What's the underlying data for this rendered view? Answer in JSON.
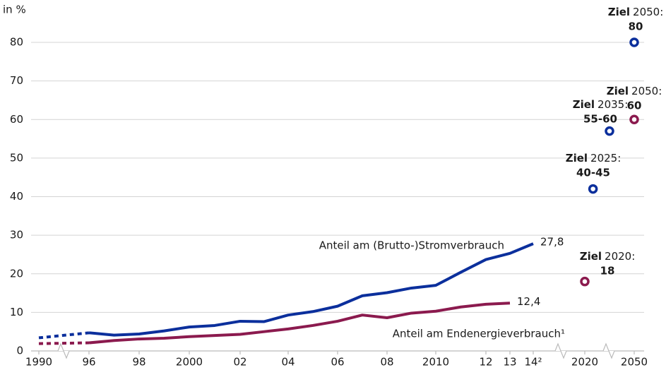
{
  "chart_data": {
    "type": "line",
    "y_label": "in %",
    "ylim": [
      0,
      80
    ],
    "yticks": [
      0,
      10,
      20,
      30,
      40,
      50,
      60,
      70,
      80
    ],
    "grid": true,
    "xticks": [
      {
        "value": 1990,
        "label": "1990"
      },
      {
        "value": 1996,
        "label": "96"
      },
      {
        "value": 1998,
        "label": "98"
      },
      {
        "value": 2000,
        "label": "2000"
      },
      {
        "value": 2002,
        "label": "02"
      },
      {
        "value": 2004,
        "label": "04"
      },
      {
        "value": 2006,
        "label": "06"
      },
      {
        "value": 2008,
        "label": "08"
      },
      {
        "value": 2010,
        "label": "2010"
      },
      {
        "value": 2012,
        "label": "12"
      },
      {
        "value": 2013,
        "label": "13"
      },
      {
        "value": 2014,
        "label": "14²"
      },
      {
        "value": 2020,
        "label": "2020"
      },
      {
        "value": 2050,
        "label": "2050"
      }
    ],
    "x": [
      1990,
      1996,
      1997,
      1998,
      1999,
      2000,
      2001,
      2002,
      2003,
      2004,
      2005,
      2006,
      2007,
      2008,
      2009,
      2010,
      2011,
      2012,
      2013,
      2014
    ],
    "series": [
      {
        "name": "Anteil am (Brutto-)Stromverbrauch",
        "color": "#0b2f9c",
        "end_label": "27,8",
        "values": [
          3.4,
          4.7,
          4.1,
          4.4,
          5.2,
          6.2,
          6.6,
          7.7,
          7.6,
          9.3,
          10.2,
          11.6,
          14.3,
          15.1,
          16.3,
          17.0,
          20.4,
          23.7,
          25.3,
          27.8
        ]
      },
      {
        "name": "Anteil am Endenergieverbrauch¹",
        "color": "#8b1a4e",
        "end_label": "12,4",
        "values": [
          1.9,
          2.1,
          2.7,
          3.1,
          3.3,
          3.7,
          4.0,
          4.3,
          5.0,
          5.7,
          6.6,
          7.7,
          9.3,
          8.6,
          9.8,
          10.3,
          11.4,
          12.1,
          12.4,
          null
        ]
      }
    ],
    "targets": [
      {
        "word": "Ziel",
        "label": "2050:",
        "value_label": "80",
        "x": 2050,
        "value": 80,
        "color": "#0b2f9c"
      },
      {
        "word": "Ziel",
        "label": "2050:",
        "value_label": "60",
        "x": 2050,
        "value": 60,
        "color": "#8b1a4e"
      },
      {
        "word": "Ziel",
        "label": "2035:",
        "value_label": "55-60",
        "x": 2035,
        "value": 57,
        "color": "#0b2f9c"
      },
      {
        "word": "Ziel",
        "label": "2025:",
        "value_label": "40-45",
        "x": 2025,
        "value": 42,
        "color": "#0b2f9c"
      },
      {
        "word": "Ziel",
        "label": "2020:",
        "value_label": "18",
        "x": 2020,
        "value": 18,
        "color": "#8b1a4e"
      }
    ]
  }
}
